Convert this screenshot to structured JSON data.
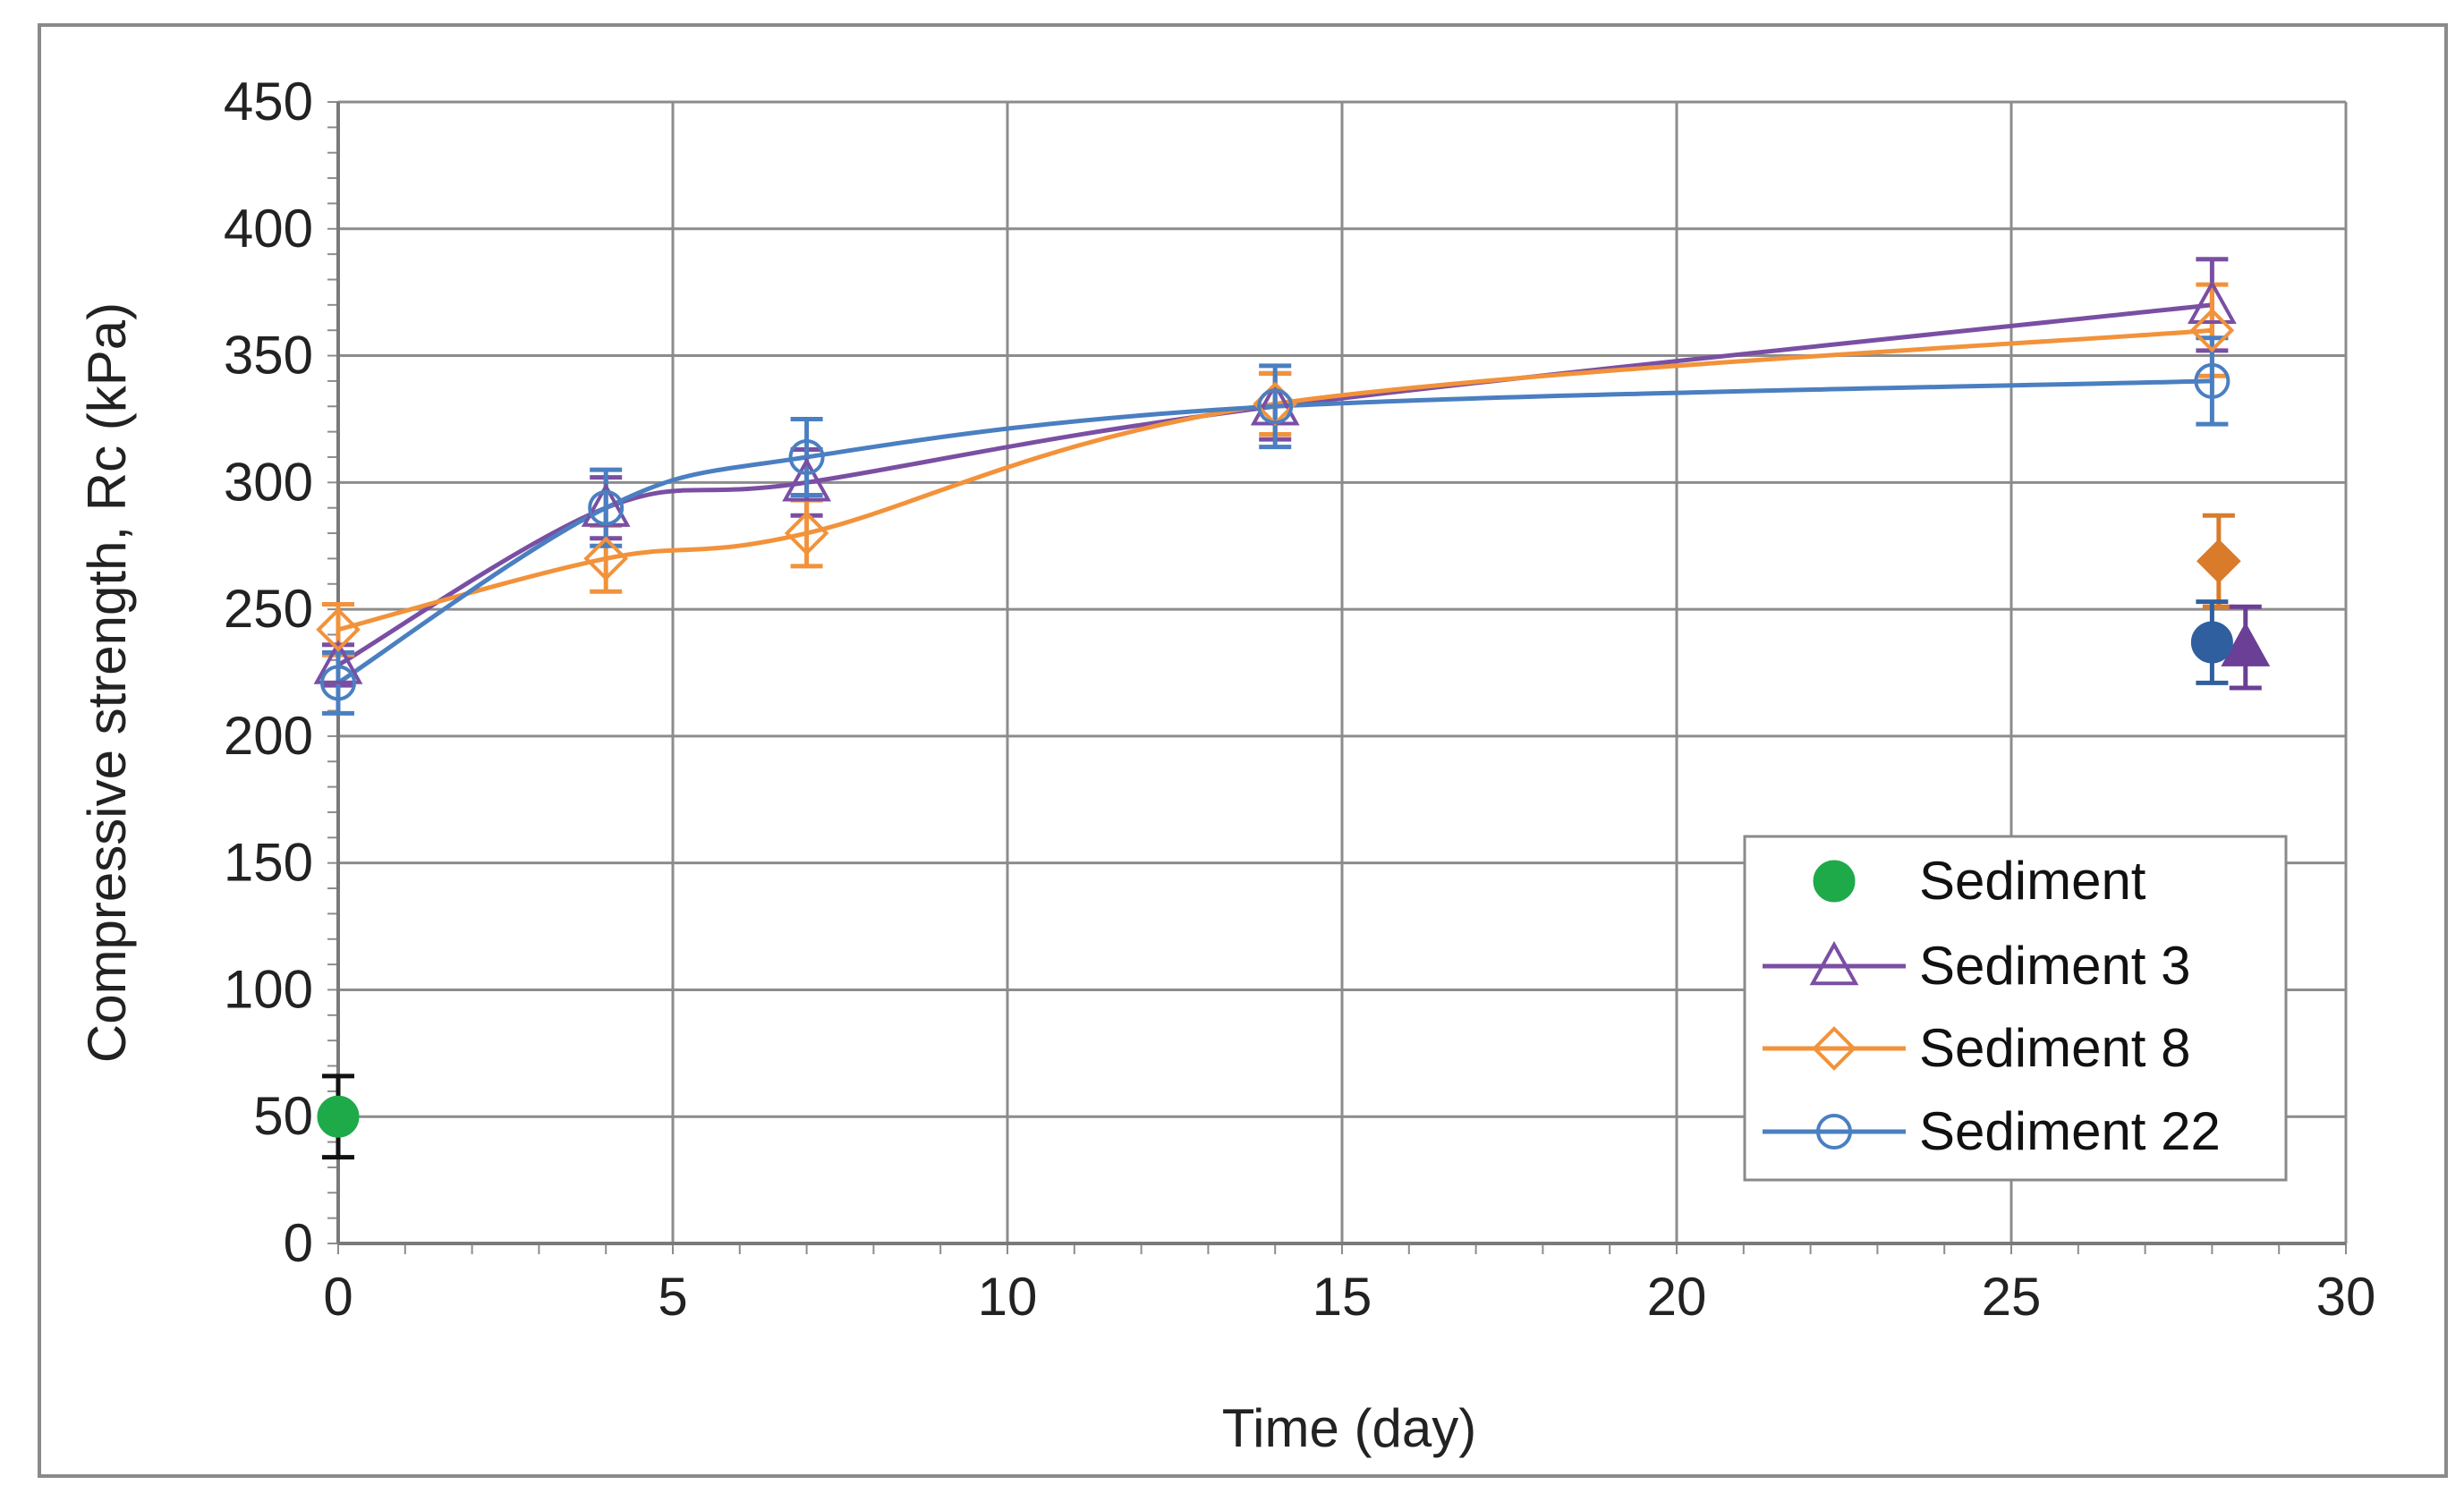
{
  "chart_data": {
    "type": "scatter",
    "title": "",
    "xlabel": "Time (day)",
    "ylabel": "Compressive strength, Rc (kPa)",
    "xlim": [
      0,
      30
    ],
    "ylim": [
      0,
      450
    ],
    "x_ticks": [
      "0",
      "5",
      "10",
      "15",
      "20",
      "25",
      "30"
    ],
    "y_ticks": [
      "0",
      "50",
      "100",
      "150",
      "200",
      "250",
      "300",
      "350",
      "400",
      "450"
    ],
    "grid": true,
    "legend_position": "bottom-right",
    "series": [
      {
        "name": "Sediment",
        "color": "#1faa4a",
        "marker": "circle-filled",
        "line": false,
        "points": [
          {
            "x": 0,
            "y": 50,
            "err": 16
          }
        ]
      },
      {
        "name": "Sediment 3",
        "color": "#7a4fa3",
        "marker": "triangle-open",
        "line": true,
        "points": [
          {
            "x": 0,
            "y": 228,
            "err": 8
          },
          {
            "x": 4,
            "y": 290,
            "err": 12
          },
          {
            "x": 7,
            "y": 300,
            "err": 13
          },
          {
            "x": 14,
            "y": 330,
            "err": 13
          },
          {
            "x": 28,
            "y": 370,
            "err": 18
          }
        ]
      },
      {
        "name": "Sediment 8",
        "color": "#f2923a",
        "marker": "diamond-open",
        "line": true,
        "points": [
          {
            "x": 0,
            "y": 242,
            "err": 10
          },
          {
            "x": 4,
            "y": 270,
            "err": 13
          },
          {
            "x": 7,
            "y": 280,
            "err": 13
          },
          {
            "x": 14,
            "y": 331,
            "err": 12
          },
          {
            "x": 28,
            "y": 360,
            "err": 18
          }
        ]
      },
      {
        "name": "Sediment 22",
        "color": "#4a7fc1",
        "marker": "circle-open",
        "line": true,
        "points": [
          {
            "x": 0,
            "y": 221,
            "err": 12
          },
          {
            "x": 4,
            "y": 290,
            "err": 15
          },
          {
            "x": 7,
            "y": 310,
            "err": 15
          },
          {
            "x": 14,
            "y": 330,
            "err": 16
          },
          {
            "x": 28,
            "y": 340,
            "err": 17
          }
        ]
      }
    ],
    "extra_points": [
      {
        "x": 28.1,
        "y": 269,
        "err": 18,
        "color": "#d97b2a",
        "marker": "diamond-filled"
      },
      {
        "x": 28.5,
        "y": 235,
        "err": 16,
        "color": "#6a3f95",
        "marker": "triangle-filled"
      },
      {
        "x": 28,
        "y": 237,
        "err": 16,
        "color": "#2f5f9e",
        "marker": "circle-filled"
      }
    ]
  }
}
